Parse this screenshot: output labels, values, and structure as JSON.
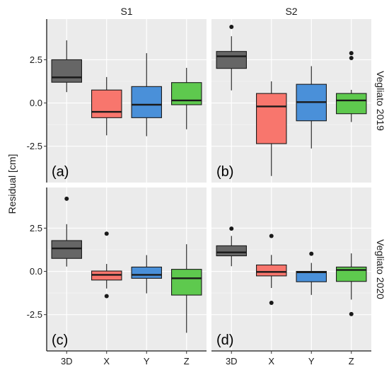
{
  "chart_data": {
    "type": "boxplot",
    "ylabel": "Residual [cm]",
    "categories": [
      "3D",
      "X",
      "Y",
      "Z"
    ],
    "colors": {
      "3D": "#666666",
      "X": "#f8766d",
      "Y": "#4a90d9",
      "Z": "#5ec94e",
      "panel_bg": "#ebebeb",
      "strip_bg": "#ffffff",
      "grid": "#ffffff"
    },
    "grid": true,
    "columns": [
      "S1",
      "S2"
    ],
    "rows": [
      "Vegliato 2019",
      "Vegliato 2020"
    ],
    "yticks": [
      2.5,
      0.0,
      -2.5
    ],
    "ytick_labels": [
      "2.5",
      "0.0",
      "-2.5"
    ],
    "panels": [
      {
        "tag": "(a)",
        "column": "S1",
        "row": "Vegliato 2019",
        "boxes": [
          {
            "category": "3D",
            "min": 0.63,
            "q1": 1.2,
            "median": 1.48,
            "q3": 2.5,
            "max": 3.62,
            "outliers": []
          },
          {
            "category": "X",
            "min": -1.87,
            "q1": -0.85,
            "median": -0.51,
            "q3": 0.75,
            "max": 1.5,
            "outliers": []
          },
          {
            "category": "Y",
            "min": -1.92,
            "q1": -0.85,
            "median": -0.1,
            "q3": 0.95,
            "max": 2.88,
            "outliers": []
          },
          {
            "category": "Z",
            "min": -1.52,
            "q1": -0.1,
            "median": 0.15,
            "q3": 1.18,
            "max": 2.03,
            "outliers": []
          }
        ]
      },
      {
        "tag": "(b)",
        "column": "S2",
        "row": "Vegliato 2019",
        "boxes": [
          {
            "category": "3D",
            "min": 0.73,
            "q1": 2.0,
            "median": 2.7,
            "q3": 2.98,
            "max": 3.86,
            "outliers": [
              4.4
            ]
          },
          {
            "category": "X",
            "min": -4.22,
            "q1": -2.35,
            "median": -0.2,
            "q3": 0.55,
            "max": 1.25,
            "outliers": []
          },
          {
            "category": "Y",
            "min": -2.63,
            "q1": -1.03,
            "median": 0.05,
            "q3": 1.08,
            "max": 2.13,
            "outliers": []
          },
          {
            "category": "Z",
            "min": -1.1,
            "q1": -0.62,
            "median": 0.15,
            "q3": 0.55,
            "max": 0.76,
            "outliers": [
              2.88,
              2.6
            ]
          }
        ]
      },
      {
        "tag": "(c)",
        "column": "S1",
        "row": "Vegliato 2020",
        "boxes": [
          {
            "category": "3D",
            "min": 0.28,
            "q1": 0.75,
            "median": 1.33,
            "q3": 1.78,
            "max": 2.73,
            "outliers": [
              4.2
            ]
          },
          {
            "category": "X",
            "min": -0.99,
            "q1": -0.5,
            "median": -0.2,
            "q3": 0.02,
            "max": 0.43,
            "outliers": [
              2.18,
              -1.43
            ]
          },
          {
            "category": "Y",
            "min": -1.27,
            "q1": -0.4,
            "median": -0.2,
            "q3": 0.25,
            "max": 0.94,
            "outliers": []
          },
          {
            "category": "Z",
            "min": -3.55,
            "q1": -1.37,
            "median": -0.4,
            "q3": 0.12,
            "max": 1.57,
            "outliers": []
          }
        ]
      },
      {
        "tag": "(d)",
        "column": "S2",
        "row": "Vegliato 2020",
        "boxes": [
          {
            "category": "3D",
            "min": 0.3,
            "q1": 0.9,
            "median": 1.1,
            "q3": 1.48,
            "max": 2.05,
            "outliers": [
              2.47
            ]
          },
          {
            "category": "X",
            "min": -0.96,
            "q1": -0.26,
            "median": -0.03,
            "q3": 0.37,
            "max": 0.95,
            "outliers": [
              2.05,
              -1.82
            ]
          },
          {
            "category": "Y",
            "min": -1.36,
            "q1": -0.6,
            "median": -0.05,
            "q3": 0.0,
            "max": 0.49,
            "outliers": [
              1.02
            ]
          },
          {
            "category": "Z",
            "min": -1.63,
            "q1": -0.58,
            "median": 0.08,
            "q3": 0.25,
            "max": 1.04,
            "outliers": [
              -2.47
            ]
          }
        ]
      }
    ]
  }
}
